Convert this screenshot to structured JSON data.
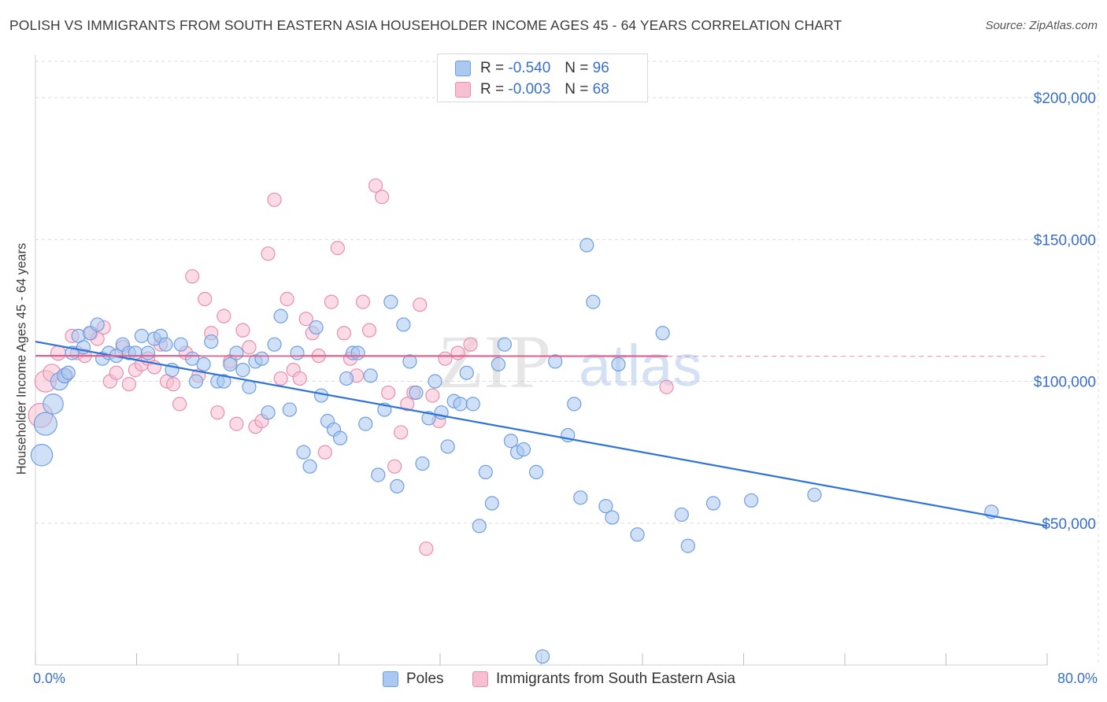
{
  "header": {
    "title": "POLISH VS IMMIGRANTS FROM SOUTH EASTERN ASIA HOUSEHOLDER INCOME AGES 45 - 64 YEARS CORRELATION CHART",
    "source": "Source: ZipAtlas.com"
  },
  "watermark": {
    "zip": "ZIP",
    "atlas": "atlas"
  },
  "legend_top": {
    "rows": [
      {
        "r_label": "R =",
        "r_value": "-0.540",
        "n_label": "N =",
        "n_value": "96"
      },
      {
        "r_label": "R =",
        "r_value": "-0.003",
        "n_label": "N =",
        "n_value": "68"
      }
    ]
  },
  "legend_bottom": {
    "poles": "Poles",
    "immigrants": "Immigrants from South Eastern Asia"
  },
  "colors": {
    "poles_fill": "#aac8f0",
    "poles_stroke": "#6f9fe0",
    "poles_line": "#2e73d8",
    "imm_fill": "#f7bfd2",
    "imm_stroke": "#e88fb0",
    "imm_line": "#e0608e",
    "axis_text": "#3a6fc7",
    "grid": "#dcdcdc"
  },
  "chart_data": {
    "type": "scatter",
    "title": "POLISH VS IMMIGRANTS FROM SOUTH EASTERN ASIA HOUSEHOLDER INCOME AGES 45 - 64 YEARS CORRELATION CHART",
    "xlabel": "",
    "ylabel": "Householder Income Ages 45 - 64 years",
    "xlim": [
      0,
      80
    ],
    "ylim": [
      0,
      215000
    ],
    "x_tick_labels": [
      "0.0%",
      "80.0%"
    ],
    "y_ticks": [
      50000,
      100000,
      150000,
      200000
    ],
    "y_tick_labels": [
      "$50,000",
      "$100,000",
      "$150,000",
      "$200,000"
    ],
    "grid": true,
    "series": [
      {
        "name": "Poles",
        "r": -0.54,
        "n": 96,
        "trend": {
          "x": [
            0,
            80
          ],
          "y": [
            114000,
            49000
          ],
          "dashed_from": null
        },
        "points": [
          [
            0.5,
            74000,
            1.6
          ],
          [
            0.8,
            85000,
            1.7
          ],
          [
            1.4,
            92000,
            1.5
          ],
          [
            1.9,
            100000,
            1.3
          ],
          [
            2.3,
            102000,
            1.1
          ],
          [
            2.9,
            110000,
            1.0
          ],
          [
            3.4,
            116000,
            1.0
          ],
          [
            3.8,
            112000,
            1.0
          ],
          [
            4.3,
            117000,
            1.0
          ],
          [
            4.9,
            120000,
            1.0
          ],
          [
            5.3,
            108000,
            1.0
          ],
          [
            5.8,
            110000,
            1.0
          ],
          [
            6.4,
            109000,
            1.0
          ],
          [
            6.9,
            113000,
            1.0
          ],
          [
            7.4,
            110000,
            1.0
          ],
          [
            7.9,
            110000,
            1.0
          ],
          [
            8.4,
            116000,
            1.0
          ],
          [
            8.9,
            110000,
            1.0
          ],
          [
            9.4,
            115000,
            1.0
          ],
          [
            9.9,
            116000,
            1.0
          ],
          [
            10.3,
            113000,
            1.0
          ],
          [
            10.8,
            104000,
            1.0
          ],
          [
            11.5,
            113000,
            1.0
          ],
          [
            12.4,
            108000,
            1.0
          ],
          [
            12.7,
            100000,
            1.0
          ],
          [
            13.3,
            106000,
            1.0
          ],
          [
            13.9,
            114000,
            1.0
          ],
          [
            14.4,
            100000,
            1.0
          ],
          [
            14.9,
            100000,
            1.0
          ],
          [
            15.4,
            106000,
            1.0
          ],
          [
            15.9,
            110000,
            1.0
          ],
          [
            16.4,
            104000,
            1.0
          ],
          [
            16.9,
            98000,
            1.0
          ],
          [
            17.4,
            107000,
            1.0
          ],
          [
            17.9,
            108000,
            1.0
          ],
          [
            18.4,
            89000,
            1.0
          ],
          [
            18.9,
            113000,
            1.0
          ],
          [
            19.4,
            123000,
            1.0
          ],
          [
            20.1,
            90000,
            1.0
          ],
          [
            20.7,
            110000,
            1.0
          ],
          [
            21.2,
            75000,
            1.0
          ],
          [
            21.7,
            70000,
            1.0
          ],
          [
            22.2,
            119000,
            1.0
          ],
          [
            22.6,
            95000,
            1.0
          ],
          [
            23.1,
            86000,
            1.0
          ],
          [
            23.6,
            83000,
            1.0
          ],
          [
            24.1,
            80000,
            1.0
          ],
          [
            24.6,
            101000,
            1.0
          ],
          [
            25.1,
            110000,
            1.0
          ],
          [
            25.5,
            110000,
            1.0
          ],
          [
            26.1,
            85000,
            1.0
          ],
          [
            26.5,
            102000,
            1.0
          ],
          [
            27.1,
            67000,
            1.0
          ],
          [
            27.6,
            90000,
            1.0
          ],
          [
            28.1,
            128000,
            1.0
          ],
          [
            28.6,
            63000,
            1.0
          ],
          [
            29.1,
            120000,
            1.0
          ],
          [
            29.6,
            107000,
            1.0
          ],
          [
            30.1,
            96000,
            1.0
          ],
          [
            30.6,
            71000,
            1.0
          ],
          [
            31.1,
            87000,
            1.0
          ],
          [
            31.6,
            100000,
            1.0
          ],
          [
            32.1,
            89000,
            1.0
          ],
          [
            32.6,
            77000,
            1.0
          ],
          [
            33.1,
            93000,
            1.0
          ],
          [
            33.6,
            92000,
            1.0
          ],
          [
            34.1,
            103000,
            1.0
          ],
          [
            34.6,
            92000,
            1.0
          ],
          [
            35.1,
            49000,
            1.0
          ],
          [
            35.6,
            68000,
            1.0
          ],
          [
            36.1,
            57000,
            1.0
          ],
          [
            36.6,
            106000,
            1.0
          ],
          [
            37.1,
            113000,
            1.0
          ],
          [
            37.6,
            79000,
            1.0
          ],
          [
            38.1,
            75000,
            1.0
          ],
          [
            38.6,
            76000,
            1.0
          ],
          [
            39.6,
            68000,
            1.0
          ],
          [
            40.1,
            3000,
            1.0
          ],
          [
            41.1,
            107000,
            1.0
          ],
          [
            42.1,
            81000,
            1.0
          ],
          [
            42.6,
            92000,
            1.0
          ],
          [
            43.1,
            59000,
            1.0
          ],
          [
            43.6,
            148000,
            1.0
          ],
          [
            44.1,
            128000,
            1.0
          ],
          [
            45.1,
            56000,
            1.0
          ],
          [
            45.6,
            52000,
            1.0
          ],
          [
            46.1,
            106000,
            1.0
          ],
          [
            47.6,
            46000,
            1.0
          ],
          [
            49.6,
            117000,
            1.0
          ],
          [
            51.1,
            53000,
            1.0
          ],
          [
            51.6,
            42000,
            1.0
          ],
          [
            53.6,
            57000,
            1.0
          ],
          [
            56.6,
            58000,
            1.0
          ],
          [
            61.6,
            60000,
            1.0
          ],
          [
            75.6,
            54000,
            1.0
          ],
          [
            2.6,
            103000,
            1.0
          ]
        ]
      },
      {
        "name": "Immigrants from South Eastern Asia",
        "r": -0.003,
        "n": 68,
        "trend": {
          "x": [
            0,
            80
          ],
          "y": [
            109000,
            108800
          ],
          "dashed_from": 50
        },
        "points": [
          [
            0.4,
            88000,
            1.8
          ],
          [
            0.8,
            100000,
            1.6
          ],
          [
            1.3,
            103000,
            1.3
          ],
          [
            1.8,
            110000,
            1.1
          ],
          [
            2.4,
            102000,
            1.0
          ],
          [
            2.9,
            116000,
            1.0
          ],
          [
            3.3,
            110000,
            1.0
          ],
          [
            3.9,
            109000,
            1.0
          ],
          [
            4.4,
            117000,
            1.0
          ],
          [
            4.9,
            115000,
            1.0
          ],
          [
            5.4,
            119000,
            1.0
          ],
          [
            5.9,
            100000,
            1.0
          ],
          [
            6.4,
            103000,
            1.0
          ],
          [
            6.9,
            112000,
            1.0
          ],
          [
            7.4,
            99000,
            1.0
          ],
          [
            7.9,
            104000,
            1.0
          ],
          [
            8.4,
            106000,
            1.0
          ],
          [
            8.9,
            108000,
            1.0
          ],
          [
            9.4,
            105000,
            1.0
          ],
          [
            9.9,
            113000,
            1.0
          ],
          [
            10.4,
            100000,
            1.0
          ],
          [
            10.9,
            99000,
            1.0
          ],
          [
            11.4,
            92000,
            1.0
          ],
          [
            11.9,
            110000,
            1.0
          ],
          [
            12.4,
            137000,
            1.0
          ],
          [
            12.9,
            102000,
            1.0
          ],
          [
            13.4,
            129000,
            1.0
          ],
          [
            13.9,
            117000,
            1.0
          ],
          [
            14.4,
            89000,
            1.0
          ],
          [
            14.9,
            123000,
            1.0
          ],
          [
            15.4,
            107000,
            1.0
          ],
          [
            15.9,
            85000,
            1.0
          ],
          [
            16.4,
            118000,
            1.0
          ],
          [
            16.9,
            112000,
            1.0
          ],
          [
            17.4,
            84000,
            1.0
          ],
          [
            17.9,
            86000,
            1.0
          ],
          [
            18.4,
            145000,
            1.0
          ],
          [
            18.9,
            164000,
            1.0
          ],
          [
            19.4,
            101000,
            1.0
          ],
          [
            19.9,
            129000,
            1.0
          ],
          [
            20.4,
            104000,
            1.0
          ],
          [
            20.9,
            101000,
            1.0
          ],
          [
            21.4,
            122000,
            1.0
          ],
          [
            21.9,
            117000,
            1.0
          ],
          [
            22.4,
            109000,
            1.0
          ],
          [
            22.9,
            75000,
            1.0
          ],
          [
            23.4,
            128000,
            1.0
          ],
          [
            23.9,
            147000,
            1.0
          ],
          [
            24.4,
            117000,
            1.0
          ],
          [
            24.9,
            108000,
            1.0
          ],
          [
            25.4,
            102000,
            1.0
          ],
          [
            25.9,
            128000,
            1.0
          ],
          [
            26.4,
            118000,
            1.0
          ],
          [
            26.9,
            169000,
            1.0
          ],
          [
            27.4,
            165000,
            1.0
          ],
          [
            27.9,
            96000,
            1.0
          ],
          [
            28.4,
            70000,
            1.0
          ],
          [
            28.9,
            82000,
            1.0
          ],
          [
            29.4,
            92000,
            1.0
          ],
          [
            29.9,
            96000,
            1.0
          ],
          [
            30.4,
            127000,
            1.0
          ],
          [
            30.9,
            41000,
            1.0
          ],
          [
            31.4,
            95000,
            1.0
          ],
          [
            31.9,
            86000,
            1.0
          ],
          [
            32.4,
            108000,
            1.0
          ],
          [
            33.4,
            110000,
            1.0
          ],
          [
            34.4,
            113000,
            1.0
          ],
          [
            49.9,
            98000,
            1.0
          ]
        ]
      }
    ]
  }
}
